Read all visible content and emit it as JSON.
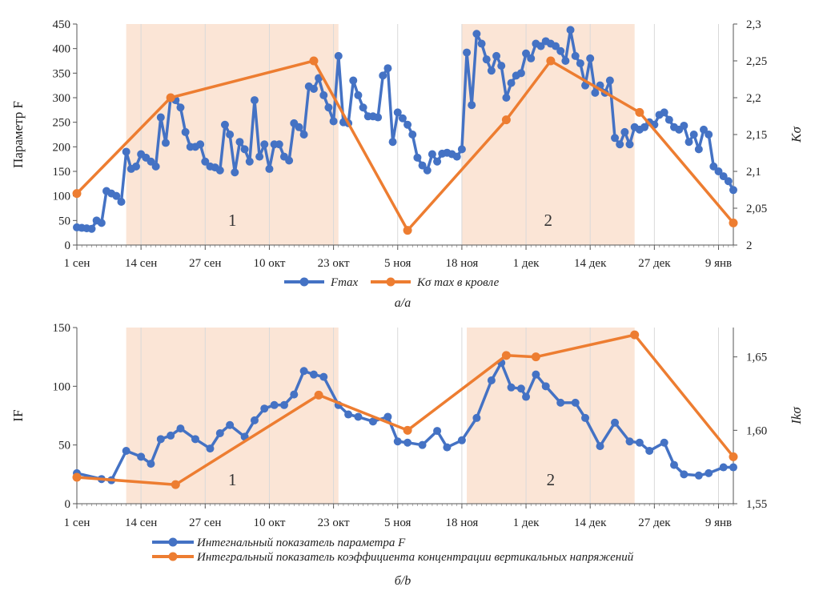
{
  "colors": {
    "blue": "#4472C4",
    "orange": "#ED7D31",
    "band": "#FBE5D6",
    "grid": "#D9D9D9"
  },
  "chart_data": [
    {
      "type": "line",
      "id": "a",
      "ylabel": "Параметр F",
      "y2label": "Kσ",
      "ylim": [
        0,
        450
      ],
      "y2lim": [
        2.0,
        2.3
      ],
      "y_ticks": [
        "0",
        "50",
        "100",
        "150",
        "200",
        "250",
        "300",
        "350",
        "400",
        "450"
      ],
      "y2_ticks": [
        "2",
        "2,05",
        "2,1",
        "2,15",
        "2,2",
        "2,25",
        "2,3"
      ],
      "x_ticks": [
        "1 сен",
        "14 сен",
        "27 сен",
        "10 окт",
        "23 окт",
        "5 ноя",
        "18 ноя",
        "1 дек",
        "14 дек",
        "27 дек",
        "9 янв"
      ],
      "x_range_days": [
        0,
        133
      ],
      "bands": [
        {
          "label": "1",
          "from": 10,
          "to": 53
        },
        {
          "label": "2",
          "from": 78,
          "to": 113
        }
      ],
      "caption": "а/a",
      "legend": [
        "Fmax",
        "Kσ max в кровле"
      ],
      "series": [
        {
          "name": "Fmax",
          "color": "#4472C4",
          "x": [
            0,
            1,
            2,
            3,
            4,
            5,
            6,
            7,
            8,
            9,
            10,
            11,
            12,
            13,
            14,
            15,
            16,
            17,
            18,
            19,
            20,
            21,
            22,
            23,
            24,
            25,
            26,
            27,
            28,
            29,
            30,
            31,
            32,
            33,
            34,
            35,
            36,
            37,
            38,
            39,
            40,
            41,
            42,
            43,
            44,
            45,
            46,
            47,
            48,
            49,
            50,
            51,
            52,
            53,
            54,
            55,
            56,
            57,
            58,
            59,
            60,
            61,
            62,
            63,
            64,
            65,
            66,
            67,
            68,
            69,
            70,
            71,
            72,
            73,
            74,
            75,
            76,
            77,
            78,
            79,
            80,
            81,
            82,
            83,
            84,
            85,
            86,
            87,
            88,
            89,
            90,
            91,
            92,
            93,
            94,
            95,
            96,
            97,
            98,
            99,
            100,
            101,
            102,
            103,
            104,
            105,
            106,
            107,
            108,
            109,
            110,
            111,
            112,
            113,
            114,
            115,
            116,
            117,
            118,
            119,
            120,
            121,
            122,
            123,
            124,
            125,
            126,
            127,
            128,
            129,
            130,
            131,
            132,
            133
          ],
          "values": [
            36,
            35,
            34,
            33,
            50,
            45,
            110,
            105,
            100,
            88,
            190,
            155,
            160,
            185,
            178,
            170,
            160,
            260,
            208,
            300,
            295,
            280,
            230,
            200,
            200,
            205,
            170,
            160,
            158,
            152,
            245,
            225,
            148,
            210,
            195,
            170,
            295,
            180,
            205,
            155,
            205,
            205,
            180,
            172,
            248,
            240,
            225,
            323,
            318,
            340,
            305,
            280,
            252,
            385,
            250,
            248,
            335,
            305,
            280,
            262,
            262,
            260,
            345,
            360,
            210,
            270,
            258,
            245,
            225,
            178,
            162,
            152,
            185,
            170,
            186,
            188,
            185,
            180,
            195,
            392,
            285,
            430,
            410,
            378,
            355,
            385,
            365,
            300,
            330,
            345,
            350,
            390,
            380,
            410,
            405,
            415,
            410,
            405,
            395,
            375,
            438,
            385,
            370,
            325,
            380,
            310,
            325,
            310,
            335,
            218,
            205,
            230,
            205,
            240,
            235,
            240,
            250,
            245,
            265,
            270,
            255,
            240,
            235,
            243,
            210,
            225,
            195,
            235,
            225,
            160,
            150,
            140,
            130,
            112
          ]
        },
        {
          "name": "Kσ max в кровле",
          "color": "#ED7D31",
          "axis": "right",
          "x": [
            0,
            19,
            48,
            67,
            87,
            96,
            114,
            133
          ],
          "values": [
            2.07,
            2.2,
            2.25,
            2.02,
            2.17,
            2.25,
            2.18,
            2.03
          ]
        }
      ]
    },
    {
      "type": "line",
      "id": "b",
      "ylabel": "IF",
      "y2label": "Ikσ",
      "ylim": [
        0,
        150
      ],
      "y2lim": [
        1.55,
        1.67
      ],
      "y_ticks": [
        "0",
        "50",
        "100",
        "150"
      ],
      "y2_ticks": [
        "1,55",
        "1,60",
        "1,65"
      ],
      "x_ticks": [
        "1 сен",
        "14 сен",
        "27 сен",
        "10 окт",
        "23 окт",
        "5 ноя",
        "18 ноя",
        "1 дек",
        "14 дек",
        "27 дек",
        "9 янв"
      ],
      "x_range_days": [
        0,
        133
      ],
      "bands": [
        {
          "label": "1",
          "from": 10,
          "to": 53
        },
        {
          "label": "2",
          "from": 79,
          "to": 113
        }
      ],
      "caption": "б/b",
      "legend": [
        "Интегнальный показатель параметра F",
        "Интегральный показатель коэффициента концентрации вертикальных напряжений"
      ],
      "series": [
        {
          "name": "Интегнальный показатель параметра F",
          "color": "#4472C4",
          "x": [
            0,
            5,
            7,
            10,
            13,
            15,
            17,
            19,
            21,
            24,
            27,
            29,
            31,
            34,
            36,
            38,
            40,
            42,
            44,
            46,
            48,
            50,
            53,
            55,
            57,
            60,
            63,
            65,
            67,
            70,
            73,
            75,
            78,
            81,
            84,
            86,
            88,
            90,
            91,
            93,
            95,
            98,
            101,
            103,
            106,
            109,
            112,
            114,
            116,
            119,
            121,
            123,
            126,
            128,
            131,
            133
          ],
          "values": [
            26,
            21,
            20,
            45,
            40,
            34,
            55,
            58,
            64,
            55,
            47,
            60,
            67,
            57,
            71,
            81,
            84,
            84,
            93,
            113,
            110,
            108,
            84,
            76,
            74,
            70,
            74,
            53,
            52,
            50,
            62,
            48,
            54,
            73,
            105,
            120,
            99,
            98,
            91,
            110,
            100,
            86,
            86,
            73,
            49,
            69,
            53,
            52,
            45,
            52,
            33,
            25,
            24,
            26,
            31,
            31
          ]
        },
        {
          "name": "Интегральный показатель коэффициента концентрации вертикальных напряжений",
          "color": "#ED7D31",
          "axis": "right",
          "x": [
            0,
            20,
            49,
            67,
            87,
            93,
            113,
            133
          ],
          "values": [
            1.568,
            1.563,
            1.624,
            1.6,
            1.651,
            1.65,
            1.665,
            1.582
          ]
        }
      ]
    }
  ]
}
